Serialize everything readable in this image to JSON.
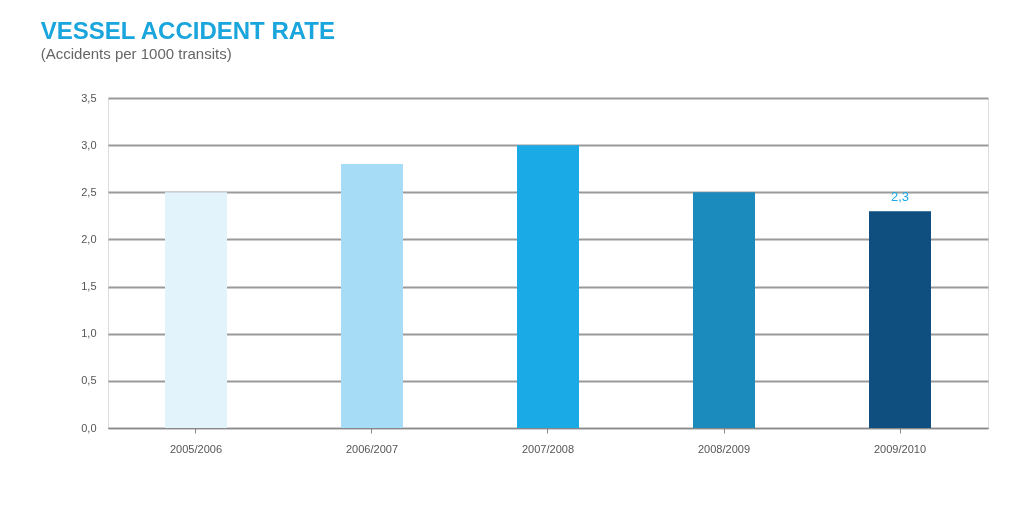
{
  "chart_data": {
    "type": "bar",
    "title": "VESSEL ACCIDENT RATE",
    "subtitle": "(Accidents per 1000 transits)",
    "categories": [
      "2005/2006",
      "2006/2007",
      "2007/2008",
      "2008/2009",
      "2009/2010"
    ],
    "values": [
      2.5,
      2.8,
      3.0,
      2.5,
      2.3
    ],
    "colors": [
      "#e3f3fb",
      "#a6dcf5",
      "#1aabe6",
      "#1b8bbd",
      "#0e4f80"
    ],
    "value_labels": [
      null,
      null,
      null,
      null,
      "2,3"
    ],
    "ylim": [
      0,
      3.5
    ],
    "yticks": [
      {
        "value": 0,
        "label": "0,0"
      },
      {
        "value": 0.5,
        "label": "0,5"
      },
      {
        "value": 1,
        "label": "1,0"
      },
      {
        "value": 1.5,
        "label": "1,5"
      },
      {
        "value": 2,
        "label": "2,0"
      },
      {
        "value": 2.5,
        "label": "2,5"
      },
      {
        "value": 3,
        "label": "3,0"
      },
      {
        "value": 3.5,
        "label": "3,5"
      }
    ],
    "grid": "y",
    "legend": false
  }
}
